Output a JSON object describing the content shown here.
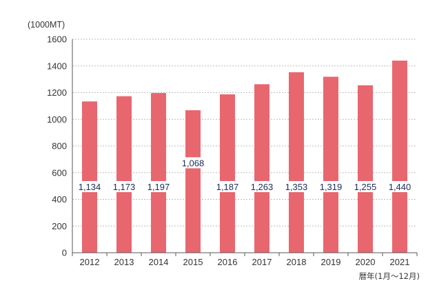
{
  "chart_data": {
    "type": "bar",
    "unit_label": "(1000MT)",
    "xlabel": "暦年(1月〜12月)",
    "categories": [
      "2012",
      "2013",
      "2014",
      "2015",
      "2016",
      "2017",
      "2018",
      "2019",
      "2020",
      "2021"
    ],
    "values": [
      1134,
      1173,
      1197,
      1068,
      1187,
      1263,
      1353,
      1319,
      1255,
      1440
    ],
    "value_labels": [
      "1,134",
      "1,173",
      "1,197",
      "1,068",
      "1,187",
      "1,263",
      "1,353",
      "1,319",
      "1,255",
      "1,440"
    ],
    "ylim": [
      0,
      1600
    ],
    "yticks": [
      0,
      200,
      400,
      600,
      800,
      1000,
      1200,
      1400,
      1600
    ],
    "grid": true,
    "colors": {
      "bar": "#e8676f",
      "grid": "#bbbbbb",
      "axis": "#555555",
      "label_bg": "#ffffff"
    }
  }
}
